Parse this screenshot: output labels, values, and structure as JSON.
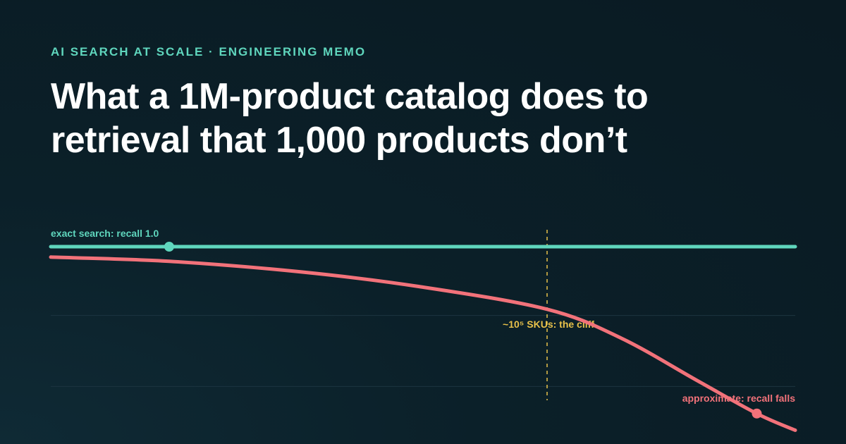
{
  "header": {
    "kicker": "AI SEARCH AT SCALE · ENGINEERING MEMO",
    "title": "What a 1M-product catalog does to retrieval that 1,000 products don’t"
  },
  "colors": {
    "exact": "#5fd6bd",
    "approx": "#f2727a",
    "cliff": "#e8c14a",
    "grid": "#1d3440"
  },
  "chart_data": {
    "type": "line",
    "title": "",
    "xlabel": "",
    "ylabel": "",
    "xscale": "log",
    "xlim": [
      1000,
      1000000
    ],
    "ylim": [
      0.0,
      1.0
    ],
    "grid": true,
    "series": [
      {
        "name": "exact search: recall 1.0",
        "color": "#5fd6bd",
        "x": [
          1000,
          1000000
        ],
        "y": [
          1.0,
          1.0
        ],
        "marker_x": 3000
      },
      {
        "name": "approximate: recall falls",
        "color": "#f2727a",
        "x": [
          1000,
          3000,
          10000,
          30000,
          100000,
          200000,
          400000,
          700000,
          1000000
        ],
        "y": [
          0.95,
          0.93,
          0.88,
          0.81,
          0.7,
          0.56,
          0.36,
          0.2,
          0.12
        ],
        "marker_x": 700000
      }
    ],
    "annotations": [
      {
        "x": 100000,
        "label": "~10⁵ SKUs: the cliff"
      }
    ]
  }
}
